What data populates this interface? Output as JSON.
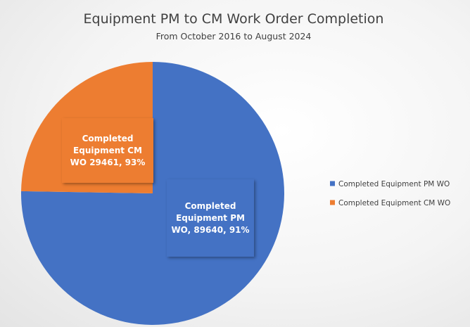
{
  "chart_data": {
    "type": "pie",
    "title": "Equipment PM to CM Work Order Completion",
    "subtitle": "From October 2016 to August 2024",
    "categories": [
      "Completed Equipment PM WO",
      "Completed Equipment CM WO"
    ],
    "values": [
      89640,
      29461
    ],
    "value_labels": [
      "Completed Equipment PM WO, 89640, 91%",
      "Completed Equipment CM WO 29461, 93%"
    ],
    "colors": [
      "#4472c4",
      "#ed7d31"
    ],
    "legend": "right"
  }
}
